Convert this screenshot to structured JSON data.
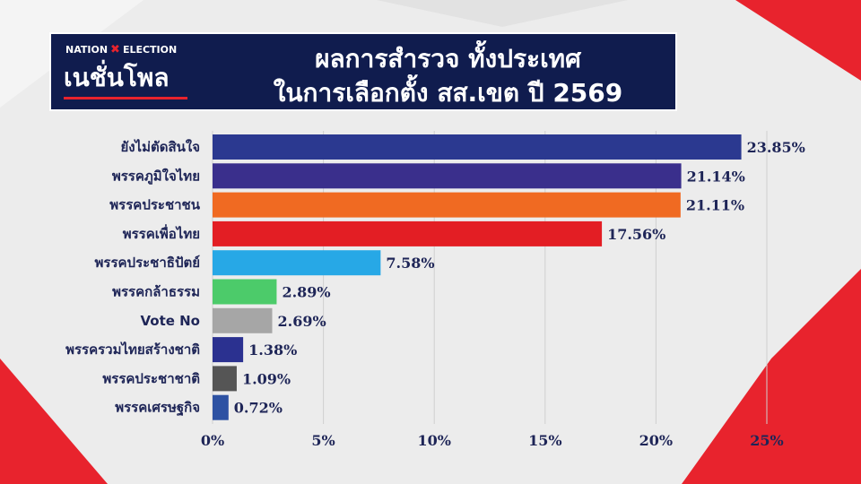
{
  "brand": {
    "top_left": "NATION",
    "top_x": "✖",
    "top_right": "ELECTION",
    "main": "เนชั่นโพล"
  },
  "title": {
    "line1": "ผลการสำรวจ ทั้งประเทศ",
    "line2": "ในการเลือกตั้ง สส.เขต ปี 2569"
  },
  "colors": {
    "header_bg": "#101c4e",
    "accent_red": "#e8232d",
    "text_dark": "#1e2557"
  },
  "chart_data": {
    "type": "bar",
    "orientation": "horizontal",
    "categories": [
      "ยังไม่ตัดสินใจ",
      "พรรคภูมิใจไทย",
      "พรรคประชาชน",
      "พรรคเพื่อไทย",
      "พรรคประชาธิปัตย์",
      "พรรคกล้าธรรม",
      "Vote No",
      "พรรครวมไทยสร้างชาติ",
      "พรรคประชาชาติ",
      "พรรคเศรษฐกิจ"
    ],
    "values": [
      23.85,
      21.14,
      21.11,
      17.56,
      7.58,
      2.89,
      2.69,
      1.38,
      1.09,
      0.72
    ],
    "value_labels": [
      "23.85%",
      "21.14%",
      "21.11%",
      "17.56%",
      "7.58%",
      "2.89%",
      "2.69%",
      "1.38%",
      "1.09%",
      "0.72%"
    ],
    "bar_colors": [
      "#2b3990",
      "#3a2f8c",
      "#f06a22",
      "#e31e24",
      "#27a8e6",
      "#4ccb6a",
      "#a6a6a6",
      "#2b3190",
      "#555555",
      "#2e52a3"
    ],
    "xlim": [
      0,
      26
    ],
    "ticks": [
      0,
      5,
      10,
      15,
      20,
      25
    ],
    "tick_labels": [
      "0%",
      "5%",
      "10%",
      "15%",
      "20%",
      "25%"
    ],
    "grid": true
  }
}
